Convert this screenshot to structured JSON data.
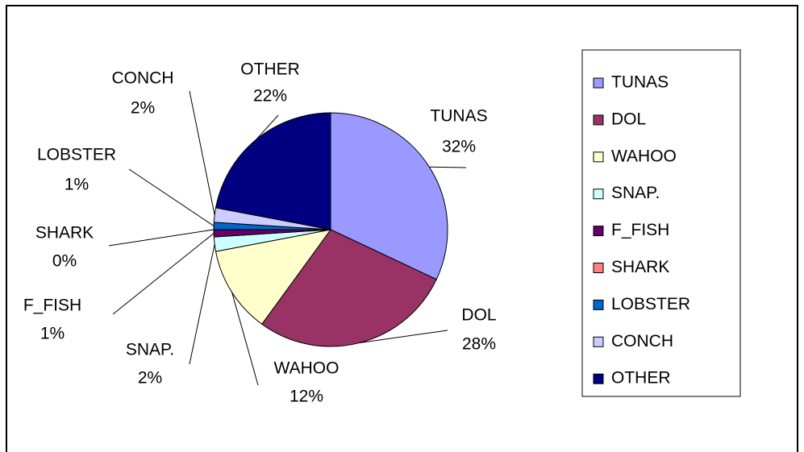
{
  "chart_data": {
    "type": "pie",
    "categories": [
      "TUNAS",
      "DOL",
      "WAHOO",
      "SNAP.",
      "F_FISH",
      "SHARK",
      "LOBSTER",
      "CONCH",
      "OTHER"
    ],
    "values": [
      32,
      28,
      12,
      2,
      1,
      0,
      1,
      2,
      22
    ],
    "value_labels": [
      "32%",
      "28%",
      "12%",
      "2%",
      "1%",
      "0%",
      "1%",
      "2%",
      "22%"
    ],
    "colors": [
      "#9999ff",
      "#993366",
      "#ffffcc",
      "#ccffff",
      "#660066",
      "#ff8080",
      "#0066cc",
      "#ccccff",
      "#000080"
    ],
    "legend": "right"
  }
}
